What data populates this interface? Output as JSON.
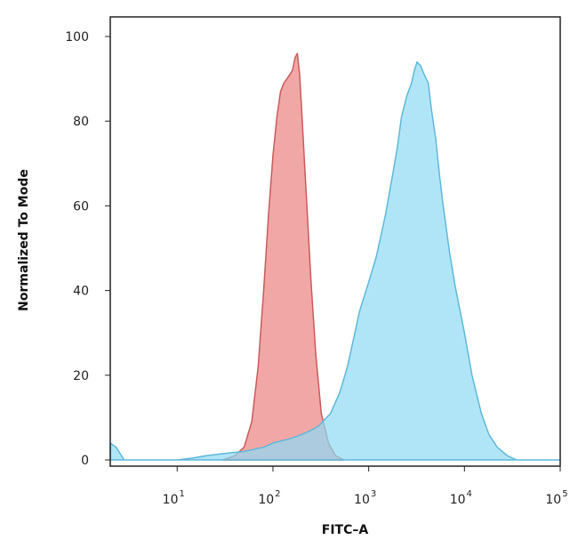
{
  "chart_data": {
    "type": "area",
    "title": "",
    "xlabel": "FITC–A",
    "ylabel": "Normalized To Mode",
    "x_scale": "log",
    "xlim": [
      2,
      100000
    ],
    "ylim": [
      0,
      100
    ],
    "x_ticks": [
      {
        "value": 10,
        "base": "10",
        "exp": "1"
      },
      {
        "value": 100,
        "base": "10",
        "exp": "2"
      },
      {
        "value": 1000,
        "base": "10",
        "exp": "3"
      },
      {
        "value": 10000,
        "base": "10",
        "exp": "4"
      },
      {
        "value": 100000,
        "base": "10",
        "exp": "5"
      }
    ],
    "y_ticks": [
      "0",
      "20",
      "40",
      "60",
      "80",
      "100"
    ],
    "grid": false,
    "series": [
      {
        "color": "#ee8a8a",
        "stroke": "#c85b5b",
        "points": [
          [
            30,
            0
          ],
          [
            40,
            1
          ],
          [
            50,
            3
          ],
          [
            60,
            9
          ],
          [
            70,
            22
          ],
          [
            80,
            40
          ],
          [
            90,
            58
          ],
          [
            100,
            72
          ],
          [
            110,
            81
          ],
          [
            120,
            87
          ],
          [
            130,
            89
          ],
          [
            140,
            90
          ],
          [
            150,
            91
          ],
          [
            160,
            92
          ],
          [
            170,
            95
          ],
          [
            180,
            96
          ],
          [
            190,
            91
          ],
          [
            200,
            82
          ],
          [
            220,
            65
          ],
          [
            250,
            42
          ],
          [
            280,
            25
          ],
          [
            320,
            11
          ],
          [
            380,
            4
          ],
          [
            450,
            1
          ],
          [
            550,
            0
          ]
        ]
      },
      {
        "color": "#8fdaf5",
        "stroke": "#5fb8d8",
        "points": [
          [
            2,
            4
          ],
          [
            2.3,
            3
          ],
          [
            2.8,
            0
          ],
          [
            5,
            0
          ],
          [
            10,
            0
          ],
          [
            15,
            0.5
          ],
          [
            20,
            1
          ],
          [
            30,
            1.5
          ],
          [
            50,
            2
          ],
          [
            80,
            3
          ],
          [
            100,
            4
          ],
          [
            150,
            5
          ],
          [
            200,
            6
          ],
          [
            250,
            7
          ],
          [
            300,
            8
          ],
          [
            400,
            11
          ],
          [
            500,
            16
          ],
          [
            600,
            22
          ],
          [
            700,
            29
          ],
          [
            800,
            35
          ],
          [
            1000,
            42
          ],
          [
            1200,
            48
          ],
          [
            1500,
            58
          ],
          [
            1800,
            68
          ],
          [
            2000,
            74
          ],
          [
            2200,
            81
          ],
          [
            2500,
            86
          ],
          [
            2800,
            89
          ],
          [
            3000,
            92
          ],
          [
            3200,
            94
          ],
          [
            3500,
            93
          ],
          [
            3800,
            91
          ],
          [
            4200,
            89
          ],
          [
            4500,
            83
          ],
          [
            5000,
            76
          ],
          [
            5500,
            67
          ],
          [
            6000,
            60
          ],
          [
            7000,
            49
          ],
          [
            8000,
            41
          ],
          [
            10000,
            30
          ],
          [
            12000,
            20
          ],
          [
            15000,
            11
          ],
          [
            18000,
            6
          ],
          [
            22000,
            3
          ],
          [
            28000,
            1
          ],
          [
            35000,
            0
          ],
          [
            100000,
            0
          ]
        ]
      }
    ]
  }
}
